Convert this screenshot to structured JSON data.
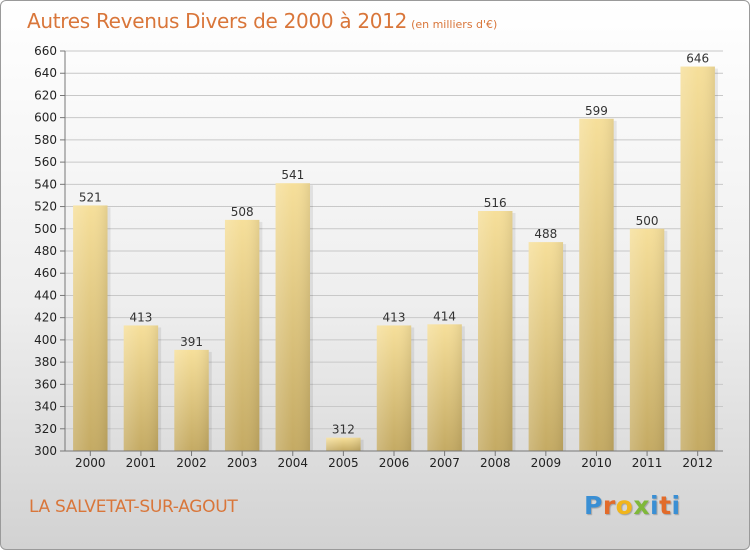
{
  "header": {
    "title": "Autres Revenus Divers de 2000 à 2012",
    "subtitle": "(en milliers d'€)"
  },
  "footer": {
    "town": "LA SALVETAT-SUR-AGOUT",
    "logo_letters": [
      "P",
      "r",
      "o",
      "x",
      "i",
      "t",
      "i"
    ]
  },
  "colors": {
    "title": "#d9763a",
    "bar_light": "#f6df9a",
    "bar_dark": "#c4aa63",
    "logo": [
      "#3a8fd4",
      "#e26b2a",
      "#f1b51b",
      "#7fb83a",
      "#3a8fd4",
      "#e26b2a",
      "#3a8fd4"
    ]
  },
  "chart_data": {
    "type": "bar",
    "categories": [
      "2000",
      "2001",
      "2002",
      "2003",
      "2004",
      "2005",
      "2006",
      "2007",
      "2008",
      "2009",
      "2010",
      "2011",
      "2012"
    ],
    "values": [
      521,
      413,
      391,
      508,
      541,
      312,
      413,
      414,
      516,
      488,
      599,
      500,
      646
    ],
    "value_labels": [
      "521",
      "413",
      "391",
      "508",
      "541",
      "312",
      "413",
      "414",
      "516",
      "488",
      "599",
      "500",
      "646"
    ],
    "ylim": [
      300,
      660
    ],
    "yticks": [
      300,
      320,
      340,
      360,
      380,
      400,
      420,
      440,
      460,
      480,
      500,
      520,
      540,
      560,
      580,
      600,
      620,
      640,
      660
    ],
    "grid": true,
    "legend": "none"
  }
}
